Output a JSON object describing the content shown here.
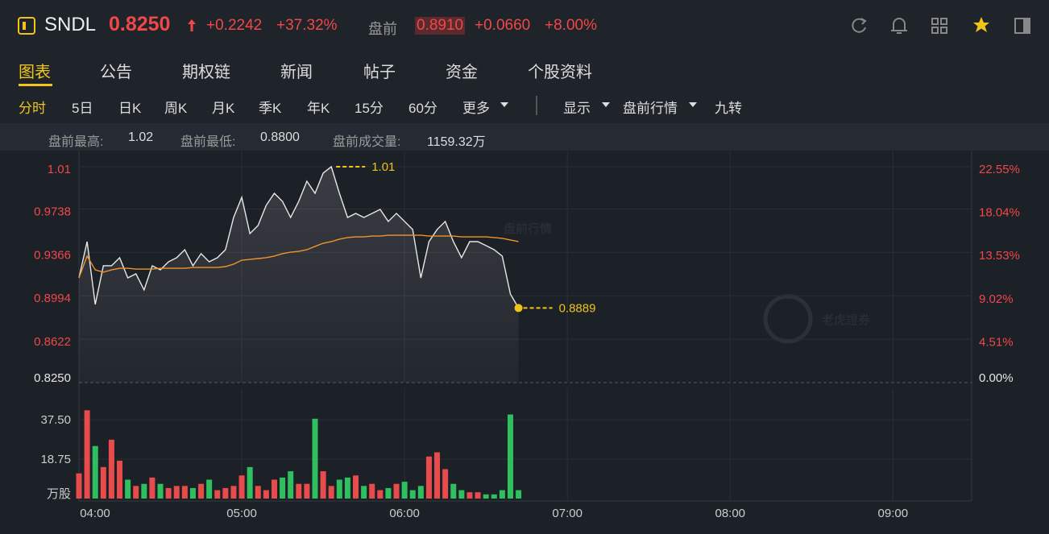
{
  "header": {
    "symbol": "SNDL",
    "price": "0.8250",
    "change": "+0.2242",
    "change_pct": "+37.32%",
    "pre_label": "盘前",
    "pre_price": "0.8910",
    "pre_change": "+0.0660",
    "pre_change_pct": "+8.00%"
  },
  "tabs": [
    "图表",
    "公告",
    "期权链",
    "新闻",
    "帖子",
    "资金",
    "个股资料"
  ],
  "toolbar": {
    "periods": [
      "分时",
      "5日",
      "日K",
      "周K",
      "月K",
      "季K",
      "年K",
      "15分",
      "60分",
      "更多"
    ],
    "options": [
      "显示",
      "盘前行情",
      "九转"
    ]
  },
  "stats": [
    {
      "label": "盘前最高:",
      "value": "1.02"
    },
    {
      "label": "盘前最低:",
      "value": "0.8800"
    },
    {
      "label": "盘前成交量:",
      "value": "1159.32万"
    }
  ],
  "watermark": "盘前行情",
  "brand": "老虎證券",
  "chart_data": [
    {
      "type": "line",
      "x": [
        "04:00",
        "04:03",
        "04:06",
        "04:09",
        "04:12",
        "04:15",
        "04:18",
        "04:21",
        "04:24",
        "04:27",
        "04:30",
        "04:33",
        "04:36",
        "04:39",
        "04:42",
        "04:45",
        "04:48",
        "04:51",
        "04:54",
        "04:57",
        "05:00",
        "05:03",
        "05:06",
        "05:09",
        "05:12",
        "05:15",
        "05:18",
        "05:21",
        "05:24",
        "05:27",
        "05:30",
        "05:33",
        "05:36",
        "05:39",
        "05:42",
        "05:45",
        "05:48",
        "05:51",
        "05:54",
        "05:57",
        "06:00",
        "06:03",
        "06:06",
        "06:09",
        "06:12",
        "06:15",
        "06:18",
        "06:21",
        "06:24",
        "06:27",
        "06:30",
        "06:33",
        "06:36",
        "06:39",
        "06:42"
      ],
      "series": [
        {
          "name": "price",
          "color": "#e8e8e8",
          "values": [
            0.9147,
            0.9458,
            0.892,
            0.9251,
            0.9251,
            0.932,
            0.9147,
            0.9182,
            0.9044,
            0.9251,
            0.9216,
            0.9285,
            0.932,
            0.9389,
            0.9251,
            0.9355,
            0.9285,
            0.932,
            0.9389,
            0.9665,
            0.9838,
            0.9527,
            0.9596,
            0.9769,
            0.9872,
            0.9803,
            0.9665,
            0.9803,
            0.9976,
            0.9872,
            1.0045,
            1.01,
            0.9872,
            0.9665,
            0.97,
            0.9665,
            0.97,
            0.9734,
            0.9631,
            0.97,
            0.9631,
            0.9562,
            0.9147,
            0.9458,
            0.9562,
            0.9631,
            0.9458,
            0.932,
            0.9458,
            0.9458,
            0.9424,
            0.9389,
            0.9334,
            0.9009,
            0.8889
          ]
        },
        {
          "name": "average",
          "color": "#f0932b",
          "values": [
            0.9147,
            0.9334,
            0.9216,
            0.9196,
            0.9216,
            0.923,
            0.923,
            0.9223,
            0.9223,
            0.9223,
            0.923,
            0.923,
            0.923,
            0.923,
            0.9237,
            0.9237,
            0.9237,
            0.9237,
            0.9244,
            0.9265,
            0.9299,
            0.9306,
            0.9313,
            0.932,
            0.9334,
            0.9355,
            0.9368,
            0.9375,
            0.9389,
            0.9417,
            0.9444,
            0.9458,
            0.9479,
            0.9493,
            0.9499,
            0.9499,
            0.9506,
            0.9506,
            0.9513,
            0.9513,
            0.9513,
            0.9513,
            0.9513,
            0.9506,
            0.9506,
            0.9506,
            0.9506,
            0.9499,
            0.9499,
            0.9499,
            0.9499,
            0.9493,
            0.9486,
            0.9472,
            0.9458
          ]
        }
      ],
      "xlim": [
        "04:00",
        "09:29"
      ],
      "ylim": [
        0.825,
        1.0238
      ],
      "yticks": [
        1.01,
        0.9738,
        0.9366,
        0.8994,
        0.8622,
        {
          "value": 0.825,
          "label": "0.8250"
        }
      ],
      "y2lim": [
        0,
        24.23
      ],
      "y2ticks": [
        {
          "value": 22.55,
          "label": "22.55%"
        },
        {
          "value": 18.04,
          "label": "18.04%"
        },
        {
          "value": 13.53,
          "label": "13.53%"
        },
        {
          "value": 9.02,
          "label": "9.02%"
        },
        {
          "value": 4.51,
          "label": "4.51%"
        },
        {
          "value": 0,
          "label": "0.00%"
        }
      ],
      "annotations": [
        {
          "x": "05:33",
          "value": 1.01
        },
        {
          "x": "06:42",
          "value": 0.8889
        }
      ],
      "annotation_color": "#f0c419",
      "grid": true
    },
    {
      "type": "bar",
      "x": [
        "04:00",
        "04:03",
        "04:06",
        "04:09",
        "04:12",
        "04:15",
        "04:18",
        "04:21",
        "04:24",
        "04:27",
        "04:30",
        "04:33",
        "04:36",
        "04:39",
        "04:42",
        "04:45",
        "04:48",
        "04:51",
        "04:54",
        "04:57",
        "05:00",
        "05:03",
        "05:06",
        "05:09",
        "05:12",
        "05:15",
        "05:18",
        "05:21",
        "05:24",
        "05:27",
        "05:30",
        "05:33",
        "05:36",
        "05:39",
        "05:42",
        "05:45",
        "05:48",
        "05:51",
        "05:54",
        "05:57",
        "06:00",
        "06:03",
        "06:06",
        "06:09",
        "06:12",
        "06:15",
        "06:18",
        "06:21",
        "06:24",
        "06:27",
        "06:30",
        "06:33",
        "06:36",
        "06:39",
        "06:42"
      ],
      "values": [
        12,
        42,
        25,
        15,
        28,
        18,
        9,
        6,
        7,
        10,
        7,
        5,
        6,
        6,
        5,
        7,
        9,
        4,
        5,
        6,
        11,
        15,
        6,
        4,
        9,
        10,
        13,
        7,
        7,
        38,
        13,
        6,
        9,
        10,
        11,
        6,
        7,
        4,
        5,
        7,
        8,
        4,
        6,
        20,
        22,
        14,
        7,
        4,
        3,
        3,
        2,
        2,
        4,
        40,
        4
      ],
      "up_color": "#e84b4b",
      "down_color": "#2fbf5f",
      "xlim": [
        "04:00",
        "09:29"
      ],
      "xticks": [
        "04:00",
        "05:00",
        "06:00",
        "07:00",
        "08:00",
        "09:00"
      ],
      "ylim": [
        0,
        52.5
      ],
      "yticks": [
        {
          "value": 37.5,
          "label": "37.50"
        },
        18.75,
        {
          "value": 0,
          "label": "万股"
        }
      ]
    }
  ]
}
